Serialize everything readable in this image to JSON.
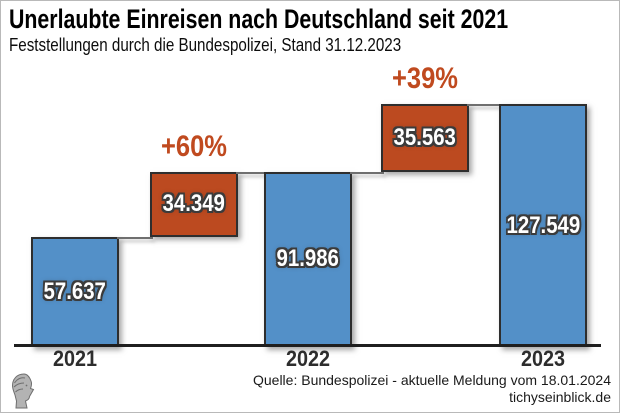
{
  "header": {
    "title": "Unerlaubte Einreisen nach Deutschland seit 2021",
    "subtitle": "Feststellungen durch die Bundespolizei, Stand 31.12.2023"
  },
  "footer": {
    "source_line": "Quelle: Bundespolizei - aktuelle Meldung vom 18.01.2024",
    "website": "tichyseinblick.de",
    "logo": "tichys-einblick-classical-head-logo"
  },
  "colors": {
    "total_bar": "#5390c8",
    "increase_bar": "#bc4a20",
    "pct_text": "#c04a1f",
    "bar_border": "#2e2e2e",
    "axis": "#1f1f1f",
    "connector": "#6f6f6f",
    "value_text": "#ffffff"
  },
  "chart_data": {
    "type": "bar",
    "subtype": "waterfall",
    "title": "Unerlaubte Einreisen nach Deutschland seit 2021",
    "subtitle": "Feststellungen durch die Bundespolizei, Stand 31.12.2023",
    "grid": false,
    "ylim": [
      0,
      127549
    ],
    "categories": [
      "2021",
      "increase 2021-2022",
      "2022",
      "increase 2022-2023",
      "2023"
    ],
    "columns": [
      {
        "kind": "total",
        "year": "2021",
        "value": 57637,
        "label": "57.637"
      },
      {
        "kind": "increase",
        "value": 34349,
        "label": "34.349",
        "pct_label": "+60%"
      },
      {
        "kind": "total",
        "year": "2022",
        "value": 91986,
        "label": "91.986"
      },
      {
        "kind": "increase",
        "value": 35563,
        "label": "35.563",
        "pct_label": "+39%"
      },
      {
        "kind": "total",
        "year": "2023",
        "value": 127549,
        "label": "127.549"
      }
    ]
  }
}
